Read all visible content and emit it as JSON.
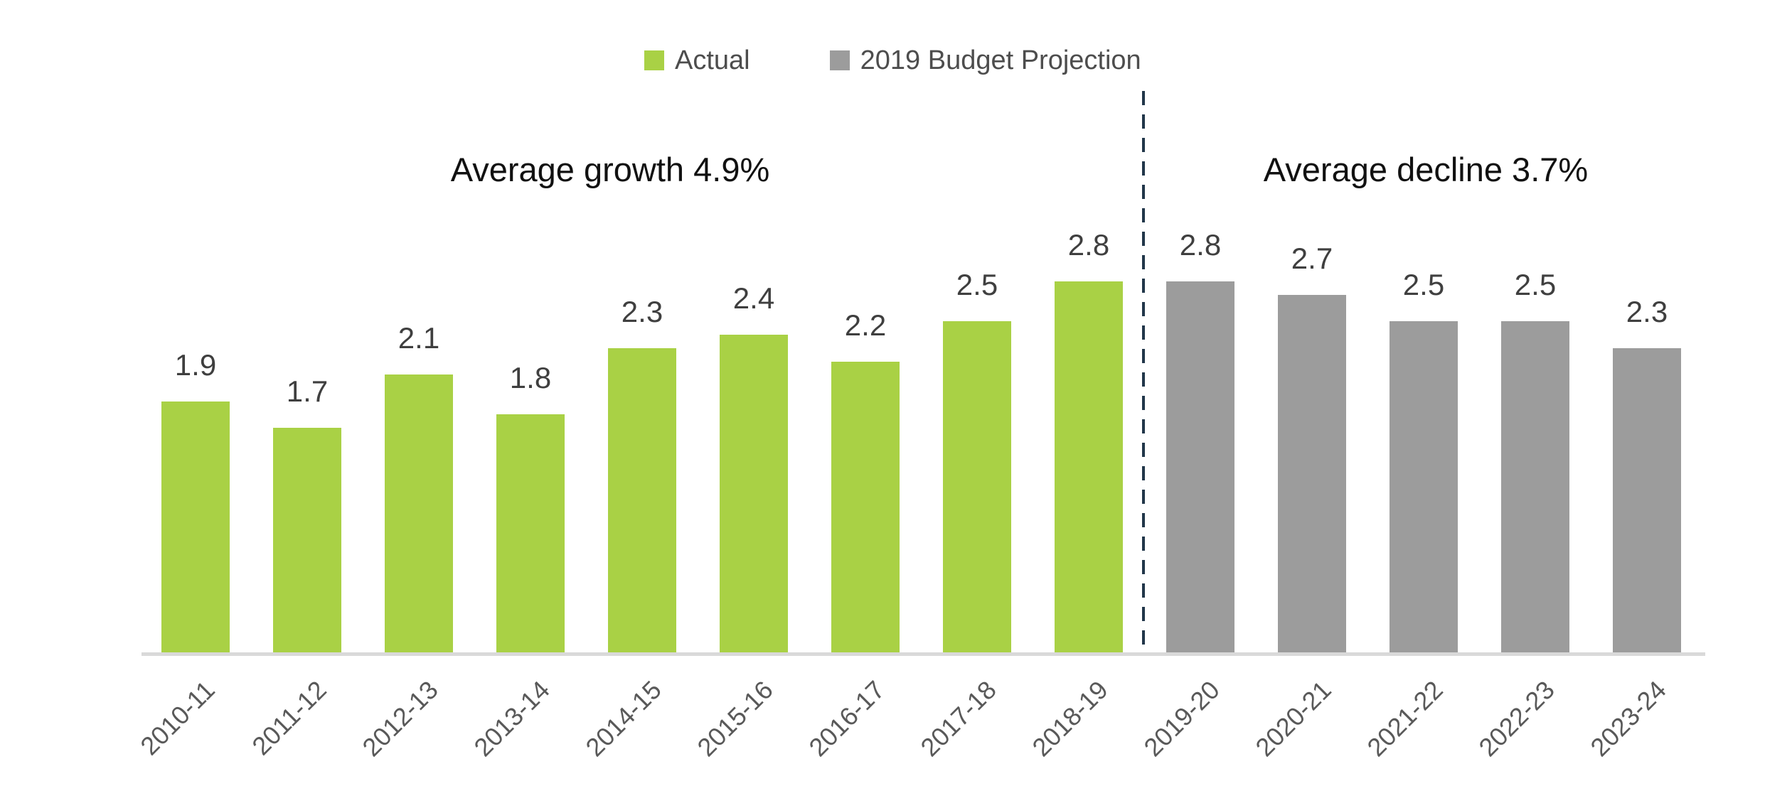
{
  "legend": {
    "entries": [
      {
        "label": "Actual",
        "color": "#a9d145"
      },
      {
        "label": "2019 Budget Projection",
        "color": "#9c9c9c"
      }
    ]
  },
  "annotations": {
    "growth": "Average growth 4.9%",
    "decline": "Average decline 3.7%"
  },
  "chart_data": {
    "type": "bar",
    "title": "",
    "xlabel": "",
    "ylabel": "",
    "categories": [
      "2010-11",
      "2011-12",
      "2012-13",
      "2013-14",
      "2014-15",
      "2015-16",
      "2016-17",
      "2017-18",
      "2018-19",
      "2019-20",
      "2020-21",
      "2021-22",
      "2022-23",
      "2023-24"
    ],
    "series": [
      {
        "name": "Actual",
        "color": "#a9d145",
        "values": [
          1.9,
          1.7,
          2.1,
          1.8,
          2.3,
          2.4,
          2.2,
          2.5,
          2.8,
          null,
          null,
          null,
          null,
          null
        ]
      },
      {
        "name": "2019 Budget Projection",
        "color": "#9c9c9c",
        "values": [
          null,
          null,
          null,
          null,
          null,
          null,
          null,
          null,
          null,
          2.8,
          2.7,
          2.5,
          2.5,
          2.3
        ]
      }
    ],
    "value_labels": [
      1.9,
      1.7,
      2.1,
      1.8,
      2.3,
      2.4,
      2.2,
      2.5,
      2.8,
      2.8,
      2.7,
      2.5,
      2.5,
      2.3
    ],
    "annotations": [
      "Average growth 4.9%",
      "Average decline 3.7%"
    ],
    "divider_after_category": "2018-19",
    "divider_color": "#22374a",
    "baseline_color": "#d9d9d9",
    "value_label_color": "#3f3f3f",
    "axis_label_color": "#595959",
    "ylim": [
      0,
      3.0
    ],
    "grid": false,
    "legend_position": "top-center",
    "x_tick_rotation": -45
  }
}
